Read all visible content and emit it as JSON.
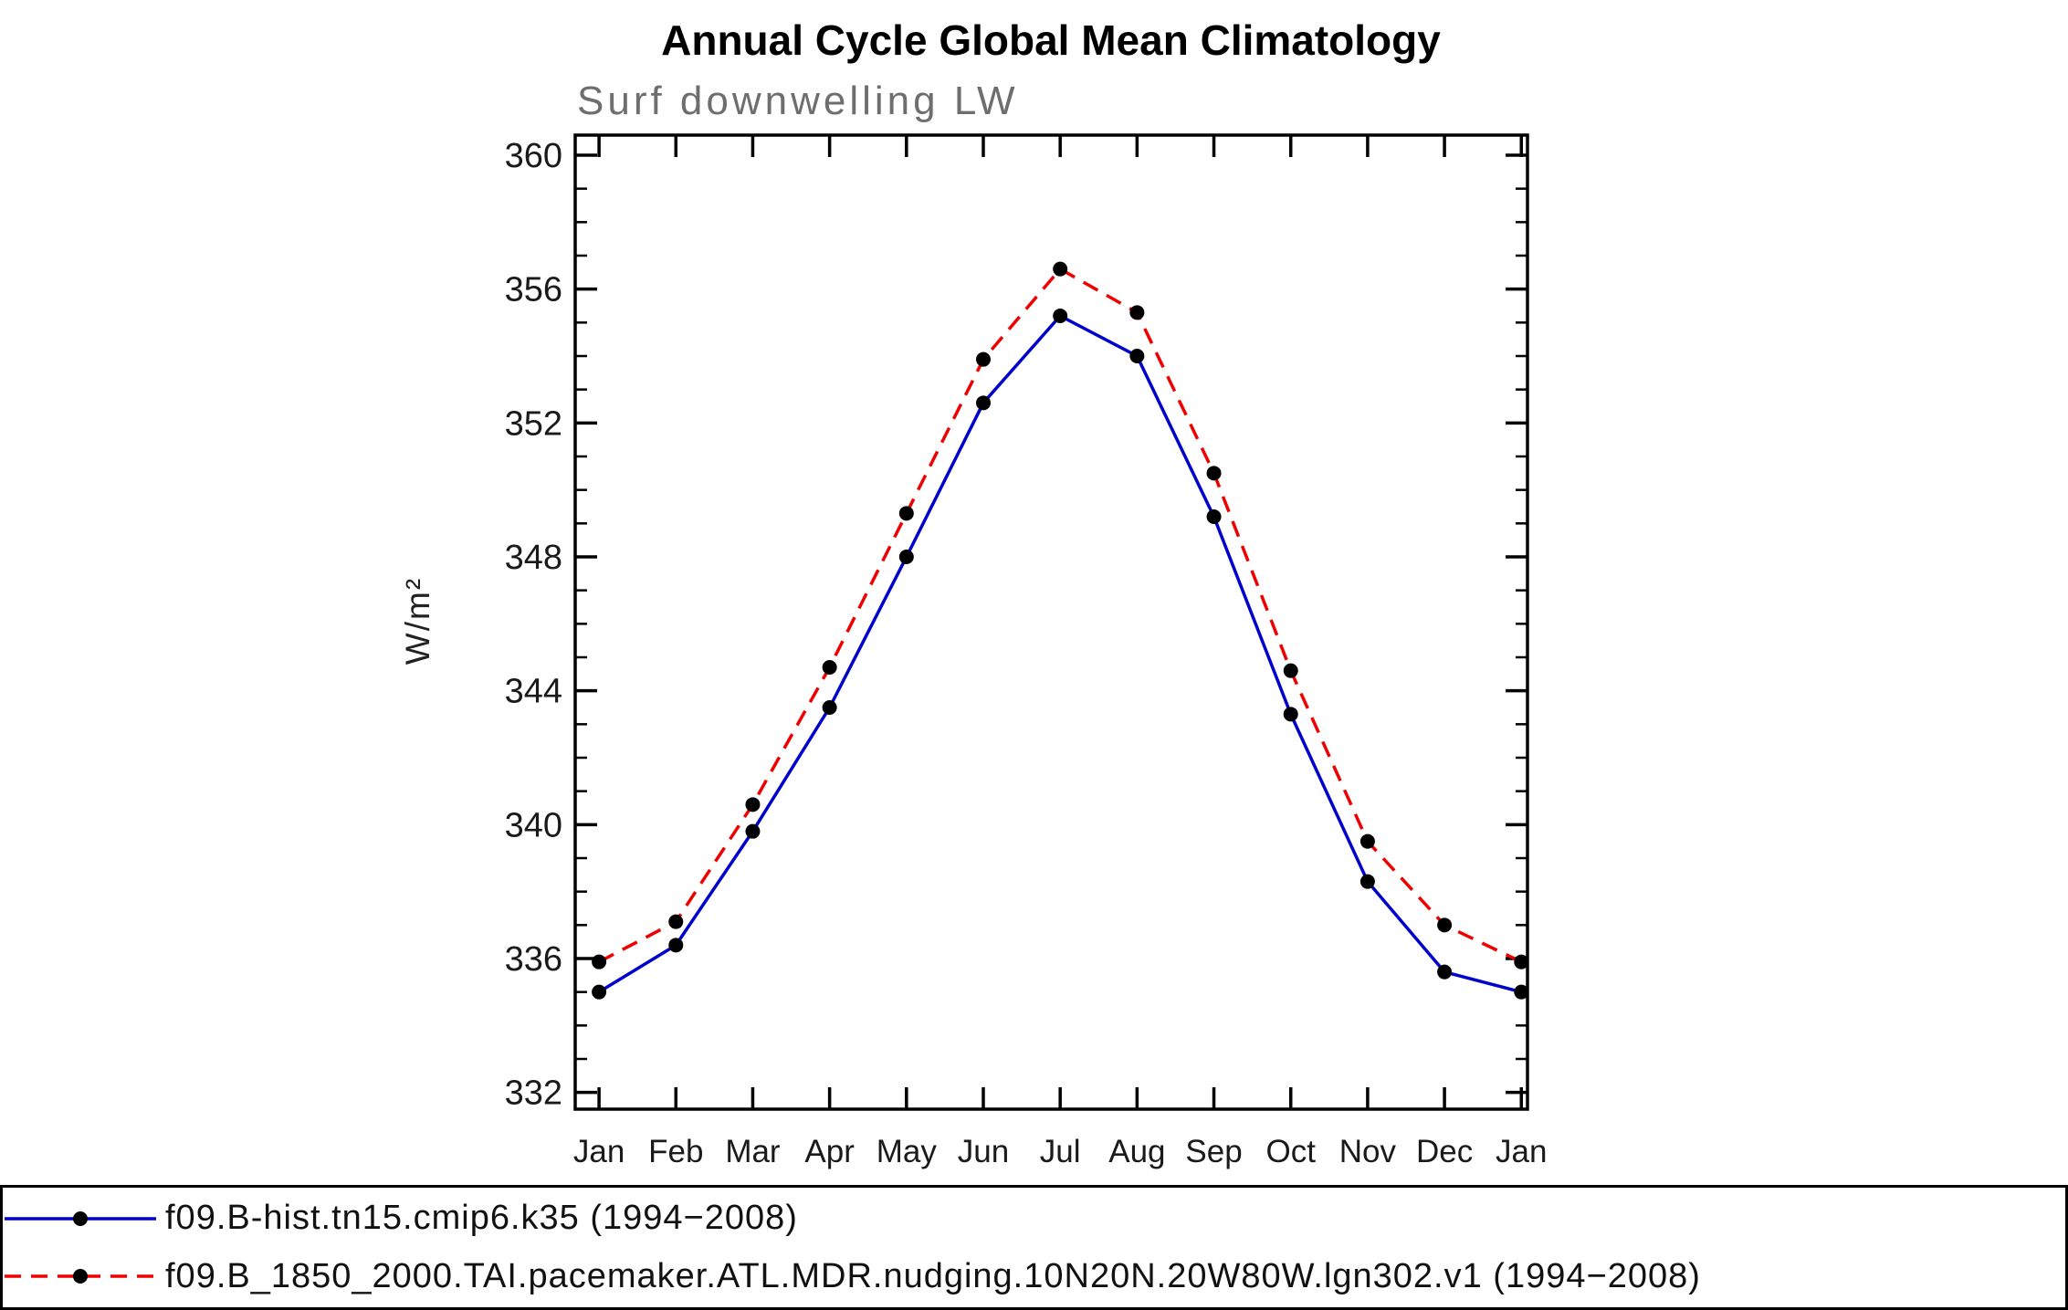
{
  "chart_data": {
    "type": "line",
    "title": "Annual Cycle Global Mean Climatology",
    "subtitle": "Surf downwelling LW",
    "ylabel": "W/m²",
    "xlabel": "",
    "categories": [
      "Jan",
      "Feb",
      "Mar",
      "Apr",
      "May",
      "Jun",
      "Jul",
      "Aug",
      "Sep",
      "Oct",
      "Nov",
      "Dec",
      "Jan"
    ],
    "ylim": [
      332,
      360
    ],
    "yticks": [
      332,
      336,
      340,
      344,
      348,
      352,
      356,
      360
    ],
    "minor_tick_step": 1,
    "grid": false,
    "legend_position": "bottom",
    "marker": "filled-circle",
    "marker_color": "#000000",
    "axis_color": "#000000",
    "series": [
      {
        "name": "f09.B-hist.tn15.cmip6.k35 (1994−2008)",
        "color": "#0000cc",
        "style": "solid",
        "dash": "",
        "values": [
          335.0,
          336.4,
          339.8,
          343.5,
          348.0,
          352.6,
          355.2,
          354.0,
          349.2,
          343.3,
          338.3,
          335.6,
          335.0
        ]
      },
      {
        "name": "f09.B_1850_2000.TAI.pacemaker.ATL.MDR.nudging.10N20N.20W80W.lgn302.v1 (1994−2008)",
        "color": "#ee0000",
        "style": "dashed",
        "dash": "18,11",
        "values": [
          335.9,
          337.1,
          340.6,
          344.7,
          349.3,
          353.9,
          356.6,
          355.3,
          350.5,
          344.6,
          339.5,
          337.0,
          335.9
        ]
      }
    ]
  }
}
